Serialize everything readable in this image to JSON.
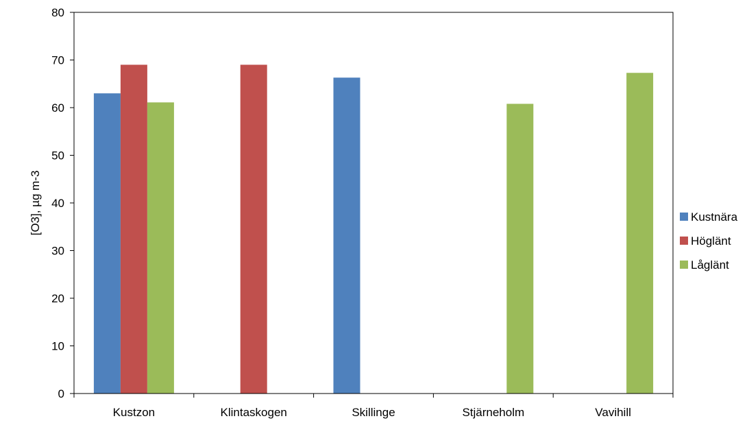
{
  "chart_data": {
    "type": "bar",
    "title": "",
    "xlabel": "",
    "ylabel": "[O3], µg m-3",
    "categories": [
      "Kustzon",
      "Klintaskogen",
      "Skillinge",
      "Stjärneholm",
      "Vavihill"
    ],
    "series": [
      {
        "name": "Kustnära",
        "color": "#4f81bd",
        "values": [
          63,
          null,
          66.3,
          null,
          null
        ]
      },
      {
        "name": "Höglänt",
        "color": "#c0504d",
        "values": [
          69,
          69,
          null,
          null,
          null
        ]
      },
      {
        "name": "Låglänt",
        "color": "#9bbb59",
        "values": [
          61.1,
          null,
          null,
          60.8,
          67.3
        ]
      }
    ],
    "ylim": [
      0,
      80
    ],
    "yticks": [
      0,
      10,
      20,
      30,
      40,
      50,
      60,
      70,
      80
    ],
    "grid": false,
    "legend_position": "right"
  }
}
